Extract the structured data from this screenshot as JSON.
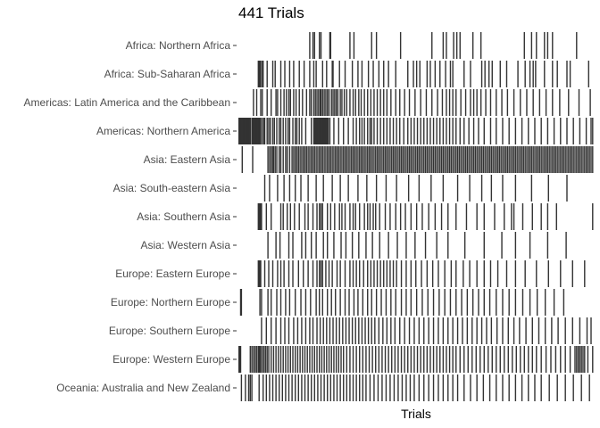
{
  "chart_data": {
    "type": "heatmap",
    "title": "441 Trials",
    "xlabel": "Trials",
    "ylabel": "",
    "n_trials": 441,
    "grid": false,
    "bar_color": "#333333",
    "background": "#ffffff",
    "categories": [
      "Africa: Northern Africa",
      "Africa: Sub-Saharan Africa",
      "Americas: Latin America and the Caribbean",
      "Americas: Northern America",
      "Asia: Eastern Asia",
      "Asia: South-eastern Asia",
      "Asia: Southern Asia",
      "Asia: Western Asia",
      "Europe: Eastern Europe",
      "Europe: Northern Europe",
      "Europe: Southern Europe",
      "Europe: Western Europe",
      "Oceania: Australia and New Zealand"
    ],
    "series": [
      {
        "trials": [
          88,
          92,
          94,
          100,
          102,
          113,
          114,
          138,
          143,
          165,
          171,
          201,
          240,
          254,
          258,
          267,
          271,
          275,
          291,
          301,
          355,
          364,
          370,
          380,
          384,
          390,
          420
        ]
      },
      {
        "trials": [
          24,
          25,
          26,
          27,
          29,
          30,
          35,
          42,
          45,
          52,
          57,
          63,
          68,
          75,
          81,
          88,
          93,
          96,
          104,
          109,
          116,
          117,
          125,
          132,
          141,
          148,
          153,
          161,
          167,
          174,
          180,
          186,
          195,
          210,
          217,
          221,
          225,
          234,
          238,
          244,
          250,
          257,
          263,
          266,
          280,
          288,
          302,
          306,
          311,
          315,
          325,
          333,
          347,
          356,
          362,
          366,
          369,
          380,
          390,
          396,
          408,
          412,
          435
        ]
      },
      {
        "trials": [
          18,
          22,
          27,
          29,
          35,
          40,
          46,
          48,
          52,
          56,
          59,
          62,
          64,
          68,
          71,
          75,
          79,
          84,
          88,
          90,
          93,
          95,
          97,
          99,
          101,
          102,
          104,
          106,
          108,
          110,
          112,
          115,
          117,
          119,
          121,
          123,
          126,
          128,
          131,
          134,
          138,
          142,
          145,
          149,
          152,
          156,
          160,
          164,
          168,
          172,
          176,
          180,
          184,
          189,
          195,
          200,
          206,
          212,
          219,
          226,
          233,
          240,
          247,
          253,
          258,
          262,
          266,
          270,
          276,
          282,
          288,
          292,
          296,
          301,
          307,
          313,
          320,
          327,
          334,
          342,
          350,
          358,
          366,
          374,
          382,
          390,
          399,
          410,
          423,
          437
        ]
      },
      {
        "trials": [
          0,
          1,
          2,
          3,
          4,
          5,
          6,
          7,
          8,
          9,
          10,
          11,
          12,
          13,
          14,
          16,
          17,
          18,
          19,
          20,
          21,
          22,
          23,
          24,
          25,
          26,
          27,
          29,
          31,
          32,
          35,
          37,
          39,
          42,
          44,
          47,
          50,
          52,
          55,
          58,
          61,
          63,
          67,
          70,
          72,
          75,
          78,
          83,
          90,
          93,
          94,
          95,
          96,
          97,
          98,
          99,
          100,
          101,
          102,
          103,
          104,
          105,
          106,
          107,
          108,
          109,
          110,
          111,
          113,
          118,
          124,
          130,
          136,
          142,
          146,
          150,
          153,
          156,
          160,
          163,
          165,
          168,
          172,
          176,
          180,
          184,
          188,
          192,
          196,
          200,
          205,
          210,
          214,
          218,
          222,
          226,
          230,
          234,
          238,
          242,
          246,
          250,
          254,
          258,
          262,
          266,
          270,
          275,
          280,
          286,
          292,
          298,
          305,
          313,
          320,
          328,
          336,
          344,
          352,
          360,
          368,
          376,
          384,
          392,
          400,
          408,
          416,
          424,
          432,
          438,
          440
        ]
      },
      {
        "trials": [
          4,
          17,
          36,
          38,
          40,
          42,
          43,
          45,
          47,
          50,
          52,
          55,
          58,
          60,
          63,
          66,
          68,
          70,
          72,
          74,
          76,
          78,
          80,
          82,
          84,
          86,
          88,
          90,
          92,
          94,
          96,
          98,
          100,
          102,
          104,
          106,
          108,
          110,
          112,
          114,
          116,
          118,
          120,
          122,
          124,
          126,
          128,
          130,
          132,
          134,
          136,
          138,
          140,
          142,
          144,
          146,
          148,
          150,
          152,
          154,
          156,
          158,
          160,
          162,
          164,
          166,
          168,
          170,
          172,
          174,
          176,
          178,
          180,
          182,
          184,
          186,
          188,
          190,
          192,
          194,
          196,
          198,
          200,
          202,
          204,
          206,
          208,
          210,
          212,
          214,
          216,
          218,
          220,
          222,
          224,
          226,
          228,
          230,
          232,
          234,
          236,
          238,
          240,
          242,
          244,
          246,
          248,
          250,
          252,
          254,
          256,
          258,
          260,
          262,
          264,
          266,
          268,
          270,
          272,
          274,
          276,
          278,
          280,
          282,
          284,
          286,
          288,
          290,
          292,
          294,
          296,
          298,
          300,
          302,
          304,
          306,
          308,
          310,
          312,
          314,
          316,
          318,
          320,
          322,
          324,
          326,
          328,
          330,
          332,
          334,
          336,
          338,
          340,
          342,
          344,
          346,
          348,
          350,
          352,
          354,
          356,
          358,
          360,
          362,
          364,
          366,
          368,
          370,
          372,
          374,
          376,
          378,
          380,
          382,
          384,
          386,
          388,
          390,
          392,
          394,
          396,
          398,
          400,
          402,
          404,
          406,
          408,
          410,
          412,
          414,
          416,
          418,
          420,
          422,
          424,
          426,
          428,
          430,
          432,
          434,
          436,
          438,
          440
        ]
      },
      {
        "trials": [
          32,
          38,
          48,
          56,
          63,
          70,
          77,
          86,
          96,
          105,
          116,
          126,
          136,
          148,
          159,
          171,
          183,
          196,
          211,
          224,
          239,
          254,
          272,
          287,
          302,
          314,
          328,
          344,
          364,
          385,
          408
        ]
      },
      {
        "trials": [
          24,
          25,
          26,
          27,
          28,
          34,
          40,
          52,
          55,
          60,
          64,
          69,
          75,
          82,
          86,
          92,
          97,
          100,
          102,
          104,
          110,
          114,
          119,
          125,
          128,
          132,
          138,
          142,
          145,
          150,
          156,
          160,
          163,
          167,
          170,
          175,
          182,
          188,
          195,
          201,
          207,
          214,
          221,
          228,
          236,
          244,
          252,
          260,
          270,
          283,
          296,
          305,
          318,
          330,
          339,
          342,
          353,
          365,
          376,
          384,
          395,
          440
        ]
      },
      {
        "trials": [
          36,
          46,
          51,
          62,
          67,
          78,
          83,
          90,
          96,
          105,
          110,
          118,
          127,
          133,
          141,
          149,
          158,
          166,
          175,
          186,
          197,
          208,
          219,
          232,
          246,
          260,
          281,
          305,
          327,
          344,
          362,
          384,
          407
        ]
      },
      {
        "trials": [
          24,
          25,
          26,
          27,
          32,
          37,
          42,
          48,
          52,
          56,
          62,
          67,
          74,
          80,
          86,
          92,
          97,
          100,
          102,
          104,
          108,
          112,
          116,
          122,
          126,
          132,
          138,
          142,
          146,
          150,
          155,
          160,
          164,
          168,
          172,
          176,
          180,
          184,
          188,
          192,
          196,
          202,
          208,
          214,
          220,
          227,
          234,
          241,
          248,
          256,
          264,
          270,
          279,
          287,
          296,
          305,
          313,
          322,
          333,
          344,
          356,
          370,
          385,
          400,
          415,
          430
        ]
      },
      {
        "trials": [
          2,
          3,
          26,
          28,
          36,
          40,
          47,
          52,
          58,
          63,
          70,
          77,
          83,
          89,
          96,
          100,
          104,
          110,
          115,
          120,
          126,
          132,
          137,
          143,
          148,
          154,
          160,
          165,
          171,
          177,
          183,
          189,
          195,
          202,
          208,
          214,
          221,
          228,
          235,
          242,
          249,
          256,
          263,
          270,
          277,
          284,
          291,
          298,
          305,
          312,
          320,
          328,
          336,
          344,
          353,
          362,
          371,
          381,
          392,
          404
        ]
      },
      {
        "trials": [
          28,
          34,
          40,
          46,
          52,
          57,
          62,
          68,
          73,
          78,
          83,
          88,
          92,
          97,
          101,
          105,
          109,
          113,
          117,
          121,
          125,
          129,
          133,
          137,
          141,
          145,
          149,
          153,
          157,
          161,
          165,
          169,
          174,
          179,
          184,
          189,
          194,
          200,
          206,
          212,
          218,
          224,
          230,
          236,
          242,
          248,
          254,
          260,
          266,
          272,
          278,
          284,
          290,
          296,
          302,
          308,
          314,
          321,
          328,
          335,
          342,
          349,
          357,
          365,
          373,
          381,
          389,
          397,
          406,
          415,
          424,
          433,
          438
        ]
      },
      {
        "trials": [
          0,
          1,
          2,
          14,
          16,
          18,
          20,
          22,
          24,
          25,
          26,
          27,
          29,
          31,
          33,
          35,
          37,
          40,
          43,
          46,
          49,
          52,
          55,
          58,
          61,
          64,
          67,
          70,
          73,
          76,
          79,
          82,
          85,
          88,
          91,
          94,
          97,
          100,
          103,
          106,
          109,
          112,
          115,
          118,
          121,
          124,
          127,
          130,
          134,
          138,
          142,
          146,
          150,
          154,
          158,
          162,
          166,
          170,
          174,
          178,
          182,
          186,
          190,
          194,
          198,
          202,
          206,
          210,
          214,
          218,
          222,
          226,
          230,
          234,
          238,
          242,
          246,
          250,
          254,
          258,
          262,
          266,
          270,
          275,
          280,
          285,
          290,
          295,
          300,
          305,
          310,
          315,
          320,
          325,
          330,
          335,
          340,
          345,
          350,
          355,
          360,
          365,
          370,
          376,
          382,
          388,
          394,
          400,
          406,
          412,
          418,
          420,
          422,
          424,
          426,
          428,
          430,
          434,
          440
        ]
      },
      {
        "trials": [
          3,
          8,
          12,
          14,
          16,
          25,
          30,
          34,
          38,
          42,
          46,
          50,
          54,
          58,
          62,
          66,
          70,
          74,
          78,
          82,
          86,
          90,
          94,
          98,
          102,
          106,
          110,
          114,
          118,
          122,
          126,
          130,
          134,
          138,
          142,
          146,
          150,
          154,
          158,
          163,
          168,
          173,
          178,
          183,
          188,
          193,
          198,
          203,
          208,
          213,
          218,
          224,
          230,
          236,
          242,
          248,
          254,
          260,
          266,
          272,
          280,
          288,
          296,
          304,
          312,
          320,
          328,
          336,
          344,
          352,
          360,
          368,
          376,
          386,
          396,
          406,
          416,
          426,
          436
        ]
      }
    ]
  }
}
